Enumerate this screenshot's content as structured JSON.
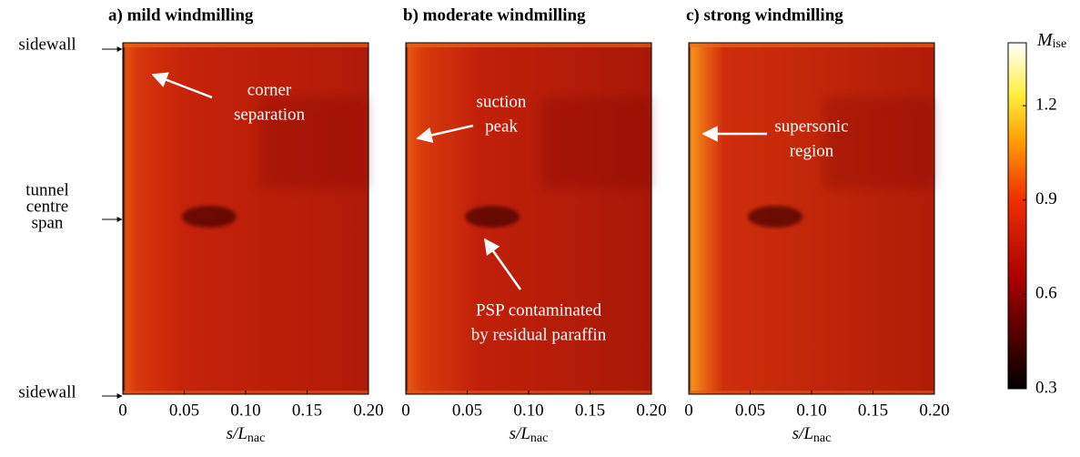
{
  "chart_data": [
    {
      "type": "heatmap",
      "title": "a) mild windmilling",
      "xlabel": [
        "s/L",
        "nac"
      ],
      "xlim": [
        0,
        0.2
      ],
      "xticks": [
        0,
        0.05,
        {
          "value": 0.1,
          "label": "0.10"
        },
        0.15,
        {
          "value": 0.2,
          "label": "0.20"
        }
      ],
      "annotations": [
        {
          "lines": [
            "corner",
            "separation"
          ]
        }
      ]
    },
    {
      "type": "heatmap",
      "title": "b) moderate windmilling",
      "xlabel": [
        "s/L",
        "nac"
      ],
      "xlim": [
        0,
        0.2
      ],
      "xticks": [
        0,
        0.05,
        {
          "value": 0.1,
          "label": "0.10"
        },
        0.15,
        {
          "value": 0.2,
          "label": "0.20"
        }
      ],
      "annotations": [
        {
          "lines": [
            "suction",
            "peak"
          ]
        },
        {
          "lines": [
            "PSP contaminated",
            "by residual paraffin"
          ]
        }
      ]
    },
    {
      "type": "heatmap",
      "title": "c) strong windmilling",
      "xlabel": [
        "s/L",
        "nac"
      ],
      "xlim": [
        0,
        0.2
      ],
      "xticks": [
        0,
        0.05,
        {
          "value": 0.1,
          "label": "0.10"
        },
        0.15,
        {
          "value": 0.2,
          "label": "0.20"
        }
      ],
      "annotations": [
        {
          "lines": [
            "supersonic",
            "region"
          ]
        }
      ]
    }
  ],
  "colorbar": {
    "label": [
      "M",
      "ise"
    ],
    "clim": [
      0.3,
      1.4
    ],
    "ticks": [
      0.3,
      0.6,
      0.9,
      1.2
    ]
  },
  "row_labels": [
    {
      "lines": [
        "sidewall"
      ]
    },
    {
      "lines": [
        "tunnel",
        "centre",
        "span"
      ]
    },
    {
      "lines": [
        "sidewall"
      ]
    }
  ]
}
